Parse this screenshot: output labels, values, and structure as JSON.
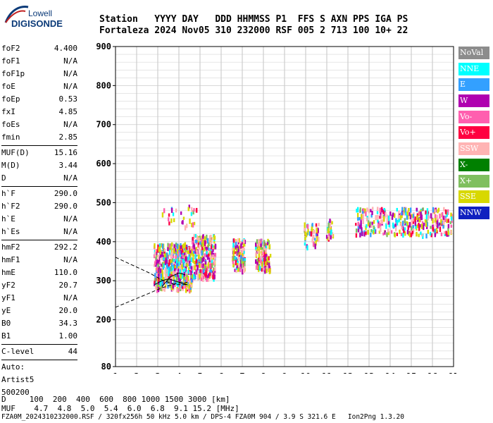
{
  "logo": {
    "top": "Lowell",
    "bottom": "DIGISONDE"
  },
  "header": {
    "line1": "Station   YYYY DAY   DDD HHMMSS P1  FFS S AXN PPS IGA PS",
    "line2": "Fortaleza 2024 Nov05 310 232000 RSF 005 2 713 100 10+ 22"
  },
  "params": [
    {
      "group": [
        {
          "name": "foF2",
          "value": "4.400"
        },
        {
          "name": "foF1",
          "value": "N/A"
        },
        {
          "name": "foF1p",
          "value": "N/A"
        },
        {
          "name": "foE",
          "value": "N/A"
        },
        {
          "name": "foEp",
          "value": "0.53"
        },
        {
          "name": "fxI",
          "value": "4.85"
        },
        {
          "name": "foEs",
          "value": "N/A"
        },
        {
          "name": "fmin",
          "value": "2.85"
        }
      ]
    },
    {
      "group": [
        {
          "name": "MUF(D)",
          "value": "15.16"
        },
        {
          "name": "M(D)",
          "value": "3.44"
        },
        {
          "name": "D",
          "value": "N/A"
        }
      ]
    },
    {
      "group": [
        {
          "name": "h`F",
          "value": "290.0"
        },
        {
          "name": "h`F2",
          "value": "290.0"
        },
        {
          "name": "h`E",
          "value": "N/A"
        },
        {
          "name": "h`Es",
          "value": "N/A"
        }
      ]
    },
    {
      "group": [
        {
          "name": "hmF2",
          "value": "292.2"
        },
        {
          "name": "hmF1",
          "value": "N/A"
        },
        {
          "name": "hmE",
          "value": "110.0"
        },
        {
          "name": "yF2",
          "value": "20.7"
        },
        {
          "name": "yF1",
          "value": "N/A"
        },
        {
          "name": "yE",
          "value": "20.0"
        },
        {
          "name": "B0",
          "value": "34.3"
        },
        {
          "name": "B1",
          "value": "1.00"
        }
      ]
    },
    {
      "group": [
        {
          "name": "C-level",
          "value": "44"
        }
      ]
    }
  ],
  "autoscale": {
    "line1": "Auto:",
    "line2": "Artist5",
    "line3": "500200"
  },
  "legend": [
    {
      "label": "NoVal",
      "color": "#8c8c8c"
    },
    {
      "label": "NNE",
      "color": "#00ffff"
    },
    {
      "label": "E",
      "color": "#33a0ff"
    },
    {
      "label": "W",
      "color": "#b000b0"
    },
    {
      "label": "Vo-",
      "color": "#ff5faf"
    },
    {
      "label": "Vo+",
      "color": "#ff0040"
    },
    {
      "label": "SSW",
      "color": "#ffb4b4"
    },
    {
      "label": "X-",
      "color": "#008000"
    },
    {
      "label": "X+",
      "color": "#7fbf5f"
    },
    {
      "label": "SSE",
      "color": "#d8d800"
    },
    {
      "label": "NNW",
      "color": "#1020c0"
    }
  ],
  "footer": {
    "row1": "D     100  200  400  600  800 1000 1500 3000 [km]",
    "row2": "MUF    4.7  4.8  5.0  5.4  6.0  6.8  9.1 15.2 [MHz]",
    "row3": "FZA0M_2024310232000.RSF / 320fx256h 50 kHz 5.0 km / DPS-4 FZA0M 904 / 3.9 S 321.6 E   Ion2Png 1.3.20"
  },
  "chart_data": {
    "type": "scatter",
    "x_ticks": [
      "1",
      "2",
      "3",
      "4",
      "5",
      "6",
      "7",
      "8",
      "9",
      "10",
      "11",
      "12",
      "13",
      "14",
      "15",
      "16",
      "17"
    ],
    "y_ticks": [
      "80",
      "200",
      "300",
      "400",
      "500",
      "600",
      "700",
      "800",
      "900"
    ],
    "xlim": [
      1,
      17
    ],
    "ylim": [
      80,
      900
    ],
    "grid": true
  }
}
